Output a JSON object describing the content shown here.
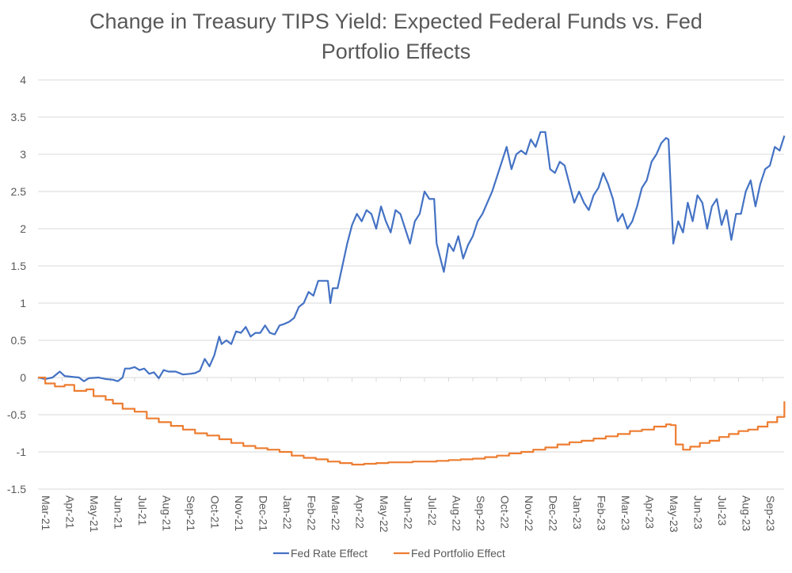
{
  "chart_data": {
    "type": "line",
    "title": "Change in Treasury TIPS Yield: Expected Federal Funds vs. Fed Portfolio Effects",
    "xlabel": "",
    "ylabel": "",
    "ylim": [
      -1.5,
      4
    ],
    "yticks": [
      "4",
      "3.5",
      "3",
      "2.5",
      "2",
      "1.5",
      "1",
      "0.5",
      "0",
      "-0.5",
      "-1",
      "-1.5"
    ],
    "ytick_values": [
      4,
      3.5,
      3,
      2.5,
      2,
      1.5,
      1,
      0.5,
      0,
      -0.5,
      -1,
      -1.5
    ],
    "grid": true,
    "legend_position": "bottom",
    "x_categories": [
      "Mar-21",
      "Apr-21",
      "May-21",
      "Jun-21",
      "Jul-21",
      "Aug-21",
      "Sep-21",
      "Oct-21",
      "Nov-21",
      "Dec-21",
      "Jan-22",
      "Feb-22",
      "Mar-22",
      "Apr-22",
      "May-22",
      "Jun-22",
      "Jul-22",
      "Aug-22",
      "Sep-22",
      "Oct-22",
      "Nov-22",
      "Dec-22",
      "Jan-23",
      "Feb-23",
      "Mar-23",
      "Apr-23",
      "May-23",
      "Jun-23",
      "Jul-23",
      "Aug-23",
      "Sep-23"
    ],
    "x_unit": "months since Mar-21",
    "x_range": [
      0,
      30.9
    ],
    "series": [
      {
        "name": "Fed Rate Effect",
        "color": "#4472c4",
        "points": [
          [
            0,
            0
          ],
          [
            0.3,
            -0.02
          ],
          [
            0.6,
            0.0
          ],
          [
            0.9,
            0.08
          ],
          [
            1.1,
            0.02
          ],
          [
            1.4,
            0.01
          ],
          [
            1.7,
            0.0
          ],
          [
            1.9,
            -0.05
          ],
          [
            2.1,
            -0.01
          ],
          [
            2.5,
            0.0
          ],
          [
            2.8,
            -0.02
          ],
          [
            3.1,
            -0.03
          ],
          [
            3.3,
            -0.05
          ],
          [
            3.5,
            0.0
          ],
          [
            3.6,
            0.12
          ],
          [
            3.8,
            0.12
          ],
          [
            4.0,
            0.14
          ],
          [
            4.2,
            0.1
          ],
          [
            4.4,
            0.12
          ],
          [
            4.6,
            0.05
          ],
          [
            4.8,
            0.07
          ],
          [
            5.0,
            -0.01
          ],
          [
            5.2,
            0.1
          ],
          [
            5.4,
            0.08
          ],
          [
            5.7,
            0.08
          ],
          [
            6.0,
            0.04
          ],
          [
            6.3,
            0.05
          ],
          [
            6.5,
            0.06
          ],
          [
            6.7,
            0.09
          ],
          [
            6.9,
            0.25
          ],
          [
            7.0,
            0.2
          ],
          [
            7.1,
            0.15
          ],
          [
            7.3,
            0.3
          ],
          [
            7.5,
            0.55
          ],
          [
            7.6,
            0.45
          ],
          [
            7.8,
            0.5
          ],
          [
            8.0,
            0.45
          ],
          [
            8.2,
            0.62
          ],
          [
            8.4,
            0.6
          ],
          [
            8.6,
            0.68
          ],
          [
            8.8,
            0.55
          ],
          [
            9.0,
            0.6
          ],
          [
            9.2,
            0.6
          ],
          [
            9.4,
            0.7
          ],
          [
            9.6,
            0.6
          ],
          [
            9.8,
            0.58
          ],
          [
            10.0,
            0.7
          ],
          [
            10.2,
            0.72
          ],
          [
            10.4,
            0.75
          ],
          [
            10.6,
            0.8
          ],
          [
            10.8,
            0.95
          ],
          [
            11.0,
            1.0
          ],
          [
            11.2,
            1.15
          ],
          [
            11.4,
            1.1
          ],
          [
            11.6,
            1.3
          ],
          [
            11.8,
            1.3
          ],
          [
            12.0,
            1.3
          ],
          [
            12.1,
            1.0
          ],
          [
            12.2,
            1.2
          ],
          [
            12.4,
            1.2
          ],
          [
            12.6,
            1.5
          ],
          [
            12.8,
            1.8
          ],
          [
            13.0,
            2.05
          ],
          [
            13.2,
            2.2
          ],
          [
            13.4,
            2.1
          ],
          [
            13.6,
            2.25
          ],
          [
            13.8,
            2.2
          ],
          [
            14.0,
            2.0
          ],
          [
            14.2,
            2.3
          ],
          [
            14.4,
            2.1
          ],
          [
            14.6,
            1.95
          ],
          [
            14.8,
            2.25
          ],
          [
            15.0,
            2.2
          ],
          [
            15.2,
            2.0
          ],
          [
            15.4,
            1.8
          ],
          [
            15.6,
            2.1
          ],
          [
            15.8,
            2.2
          ],
          [
            16.0,
            2.5
          ],
          [
            16.2,
            2.4
          ],
          [
            16.4,
            2.4
          ],
          [
            16.5,
            1.8
          ],
          [
            16.8,
            1.42
          ],
          [
            17.0,
            1.8
          ],
          [
            17.2,
            1.7
          ],
          [
            17.4,
            1.9
          ],
          [
            17.6,
            1.6
          ],
          [
            17.8,
            1.78
          ],
          [
            18.0,
            1.9
          ],
          [
            18.2,
            2.1
          ],
          [
            18.4,
            2.2
          ],
          [
            18.6,
            2.35
          ],
          [
            18.8,
            2.5
          ],
          [
            19.0,
            2.7
          ],
          [
            19.2,
            2.9
          ],
          [
            19.4,
            3.1
          ],
          [
            19.6,
            2.8
          ],
          [
            19.8,
            3.0
          ],
          [
            20.0,
            3.05
          ],
          [
            20.2,
            3.0
          ],
          [
            20.4,
            3.2
          ],
          [
            20.6,
            3.1
          ],
          [
            20.8,
            3.3
          ],
          [
            21.0,
            3.3
          ],
          [
            21.2,
            2.8
          ],
          [
            21.4,
            2.75
          ],
          [
            21.6,
            2.9
          ],
          [
            21.8,
            2.85
          ],
          [
            22.0,
            2.6
          ],
          [
            22.2,
            2.35
          ],
          [
            22.4,
            2.5
          ],
          [
            22.6,
            2.35
          ],
          [
            22.8,
            2.25
          ],
          [
            23.0,
            2.45
          ],
          [
            23.2,
            2.55
          ],
          [
            23.4,
            2.75
          ],
          [
            23.6,
            2.6
          ],
          [
            23.8,
            2.4
          ],
          [
            24.0,
            2.1
          ],
          [
            24.2,
            2.2
          ],
          [
            24.4,
            2.0
          ],
          [
            24.6,
            2.1
          ],
          [
            24.8,
            2.3
          ],
          [
            25.0,
            2.55
          ],
          [
            25.2,
            2.65
          ],
          [
            25.4,
            2.9
          ],
          [
            25.6,
            3.0
          ],
          [
            25.8,
            3.15
          ],
          [
            26.0,
            3.22
          ],
          [
            26.1,
            3.2
          ],
          [
            26.3,
            1.8
          ],
          [
            26.5,
            2.1
          ],
          [
            26.7,
            1.95
          ],
          [
            26.9,
            2.35
          ],
          [
            27.1,
            2.1
          ],
          [
            27.3,
            2.45
          ],
          [
            27.5,
            2.35
          ],
          [
            27.7,
            2.0
          ],
          [
            27.9,
            2.3
          ],
          [
            28.1,
            2.4
          ],
          [
            28.3,
            2.05
          ],
          [
            28.5,
            2.25
          ],
          [
            28.7,
            1.85
          ],
          [
            28.9,
            2.2
          ],
          [
            29.1,
            2.2
          ],
          [
            29.3,
            2.5
          ],
          [
            29.5,
            2.65
          ],
          [
            29.7,
            2.3
          ],
          [
            29.9,
            2.6
          ],
          [
            30.1,
            2.8
          ],
          [
            30.3,
            2.85
          ],
          [
            30.5,
            3.1
          ],
          [
            30.7,
            3.05
          ],
          [
            30.9,
            3.25
          ]
        ]
      },
      {
        "name": "Fed Portfolio Effect",
        "color": "#ed7d31",
        "points": [
          [
            0,
            0
          ],
          [
            0.3,
            -0.08
          ],
          [
            0.7,
            -0.12
          ],
          [
            1.1,
            -0.1
          ],
          [
            1.5,
            -0.18
          ],
          [
            2.0,
            -0.16
          ],
          [
            2.3,
            -0.25
          ],
          [
            2.8,
            -0.3
          ],
          [
            3.1,
            -0.35
          ],
          [
            3.5,
            -0.42
          ],
          [
            4.0,
            -0.46
          ],
          [
            4.5,
            -0.55
          ],
          [
            5.0,
            -0.6
          ],
          [
            5.5,
            -0.65
          ],
          [
            6.0,
            -0.7
          ],
          [
            6.5,
            -0.75
          ],
          [
            7.0,
            -0.78
          ],
          [
            7.5,
            -0.83
          ],
          [
            8.0,
            -0.88
          ],
          [
            8.5,
            -0.92
          ],
          [
            9.0,
            -0.95
          ],
          [
            9.5,
            -0.97
          ],
          [
            10.0,
            -1.0
          ],
          [
            10.5,
            -1.05
          ],
          [
            11.0,
            -1.08
          ],
          [
            11.5,
            -1.1
          ],
          [
            12.0,
            -1.13
          ],
          [
            12.5,
            -1.15
          ],
          [
            13.0,
            -1.17
          ],
          [
            13.5,
            -1.16
          ],
          [
            14.0,
            -1.15
          ],
          [
            14.5,
            -1.14
          ],
          [
            15.0,
            -1.14
          ],
          [
            15.5,
            -1.13
          ],
          [
            16.0,
            -1.13
          ],
          [
            16.5,
            -1.12
          ],
          [
            17.0,
            -1.11
          ],
          [
            17.5,
            -1.1
          ],
          [
            18.0,
            -1.09
          ],
          [
            18.5,
            -1.07
          ],
          [
            19.0,
            -1.05
          ],
          [
            19.5,
            -1.02
          ],
          [
            20.0,
            -1.0
          ],
          [
            20.5,
            -0.97
          ],
          [
            21.0,
            -0.94
          ],
          [
            21.5,
            -0.9
          ],
          [
            22.0,
            -0.87
          ],
          [
            22.5,
            -0.85
          ],
          [
            23.0,
            -0.82
          ],
          [
            23.5,
            -0.79
          ],
          [
            24.0,
            -0.76
          ],
          [
            24.5,
            -0.72
          ],
          [
            25.0,
            -0.7
          ],
          [
            25.5,
            -0.66
          ],
          [
            26.0,
            -0.63
          ],
          [
            26.2,
            -0.64
          ],
          [
            26.4,
            -0.9
          ],
          [
            26.7,
            -0.97
          ],
          [
            27.0,
            -0.93
          ],
          [
            27.4,
            -0.88
          ],
          [
            27.8,
            -0.85
          ],
          [
            28.2,
            -0.8
          ],
          [
            28.6,
            -0.76
          ],
          [
            29.0,
            -0.72
          ],
          [
            29.4,
            -0.7
          ],
          [
            29.8,
            -0.66
          ],
          [
            30.2,
            -0.6
          ],
          [
            30.6,
            -0.53
          ],
          [
            30.9,
            -0.32
          ]
        ]
      }
    ]
  },
  "legend": {
    "items": [
      {
        "label": "Fed Rate Effect",
        "color": "#4472c4"
      },
      {
        "label": "Fed Portfolio Effect",
        "color": "#ed7d31"
      }
    ]
  }
}
